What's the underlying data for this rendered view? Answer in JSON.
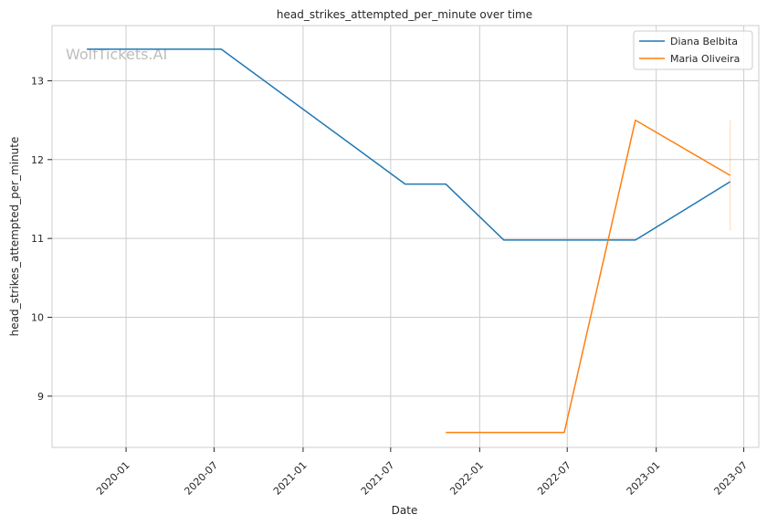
{
  "chart_data": {
    "type": "line",
    "title": "head_strikes_attempted_per_minute over time",
    "xlabel": "Date",
    "ylabel": "head_strikes_attempted_per_minute",
    "watermark": "WolfTickets.AI",
    "x_ticks": [
      "2020-01",
      "2020-07",
      "2021-01",
      "2021-07",
      "2022-01",
      "2022-07",
      "2023-01",
      "2023-07"
    ],
    "y_ticks": [
      9,
      10,
      11,
      12,
      13
    ],
    "xlim": [
      "2019-08-01",
      "2023-08-01"
    ],
    "ylim": [
      8.35,
      13.7
    ],
    "grid": true,
    "legend_position": "top-right",
    "series": [
      {
        "name": "Diana Belbita",
        "color": "#1f77b4",
        "points": [
          {
            "x": "2019-10-12",
            "y": 13.4
          },
          {
            "x": "2020-07-16",
            "y": 13.4
          },
          {
            "x": "2021-07-31",
            "y": 11.69
          },
          {
            "x": "2021-10-23",
            "y": 11.69
          },
          {
            "x": "2022-02-20",
            "y": 10.98
          },
          {
            "x": "2022-11-19",
            "y": 10.98
          },
          {
            "x": "2023-06-03",
            "y": 11.72
          }
        ]
      },
      {
        "name": "Maria Oliveira",
        "color": "#ff7f0e",
        "points": [
          {
            "x": "2021-10-23",
            "y": 8.54
          },
          {
            "x": "2022-06-25",
            "y": 8.54
          },
          {
            "x": "2022-11-19",
            "y": 12.5
          },
          {
            "x": "2023-06-03",
            "y": 11.8
          }
        ],
        "errorbar": {
          "x": "2023-06-03",
          "low": 11.1,
          "high": 12.5
        }
      }
    ]
  }
}
